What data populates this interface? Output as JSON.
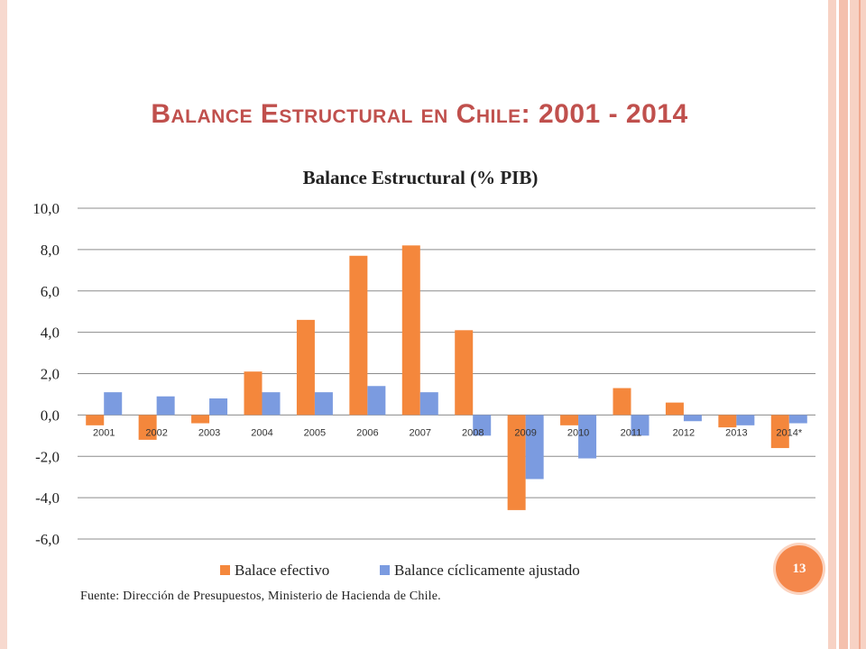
{
  "slide": {
    "title": "Balance Estructural en Chile: 2001 - 2014",
    "page_number": "13",
    "source": "Fuente: Dirección de Presupuestos, Ministerio de Hacienda de Chile."
  },
  "colors": {
    "title": "#c0504d",
    "series_1": "#f4873c",
    "series_2": "#7b9be0",
    "badge": "#f4874b"
  },
  "chart_data": {
    "type": "bar",
    "title": "Balance Estructural (% PIB)",
    "xlabel": "",
    "ylabel": "",
    "ylim": [
      -6,
      10
    ],
    "y_ticks": [
      "10,0",
      "8,0",
      "6,0",
      "4,0",
      "2,0",
      "0,0",
      "-2,0",
      "-4,0",
      "-6,0"
    ],
    "y_tick_values": [
      10,
      8,
      6,
      4,
      2,
      0,
      -2,
      -4,
      -6
    ],
    "grid": true,
    "legend_position": "bottom",
    "categories": [
      "2001",
      "2002",
      "2003",
      "2004",
      "2005",
      "2006",
      "2007",
      "2008",
      "2009",
      "2010",
      "2011",
      "2012",
      "2013",
      "2014*"
    ],
    "series": [
      {
        "name": "Balace efectivo",
        "values": [
          -0.5,
          -1.2,
          -0.4,
          2.1,
          4.6,
          7.7,
          8.2,
          4.1,
          -4.6,
          -0.5,
          1.3,
          0.6,
          -0.6,
          -1.6
        ]
      },
      {
        "name": "Balance cíclicamente ajustado",
        "values": [
          1.1,
          0.9,
          0.8,
          1.1,
          1.1,
          1.4,
          1.1,
          -1.0,
          -3.1,
          -2.1,
          -1.0,
          -0.3,
          -0.5,
          -0.4
        ]
      }
    ]
  }
}
